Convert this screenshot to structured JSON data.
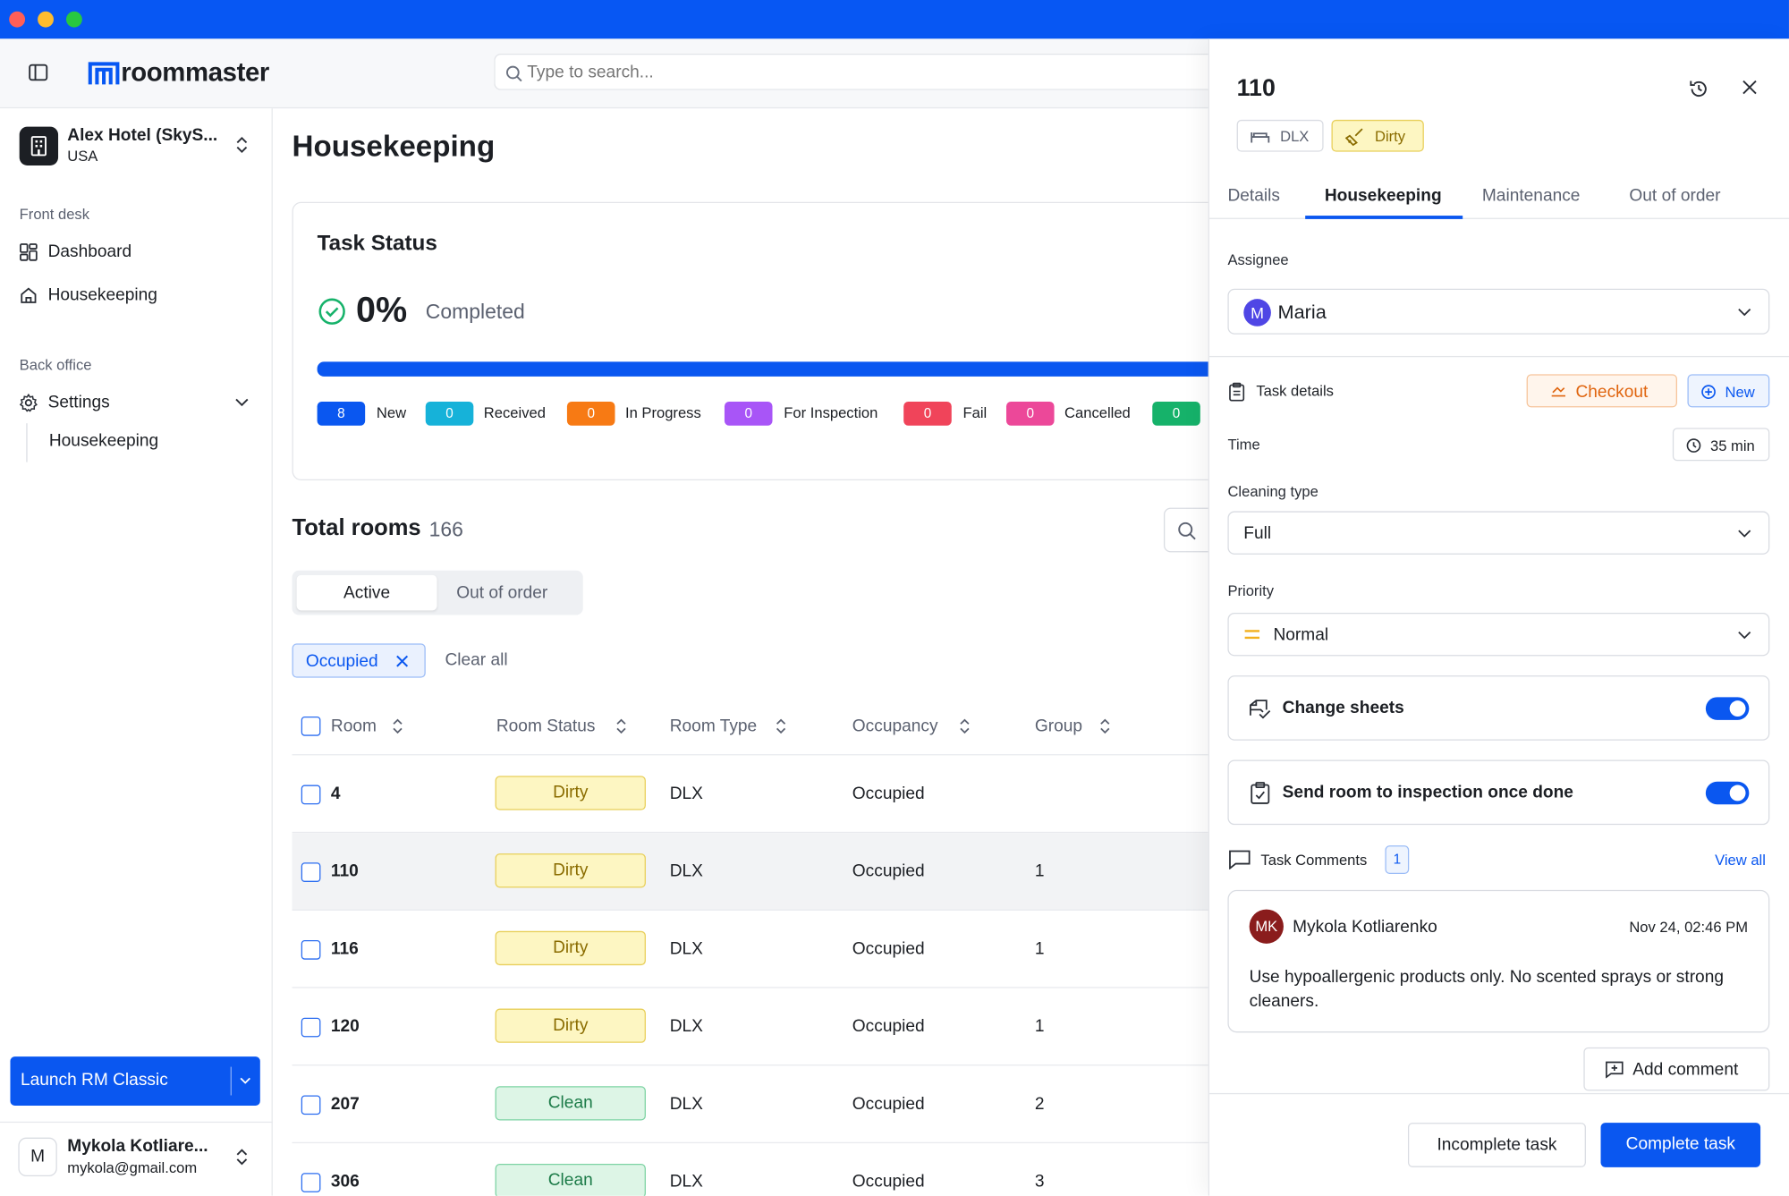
{
  "brand": {
    "name": "roommaster",
    "color": "#0757f3"
  },
  "search": {
    "placeholder": "Type to search..."
  },
  "hotel": {
    "name": "Alex Hotel (SkyS...",
    "country": "USA"
  },
  "sidebar": {
    "section_front": "Front desk",
    "dashboard": "Dashboard",
    "housekeeping": "Housekeeping",
    "section_back": "Back office",
    "settings": "Settings",
    "settings_housekeeping": "Housekeeping",
    "launch": "Launch RM Classic"
  },
  "user": {
    "initial": "M",
    "name": "Mykola Kotliare...",
    "email": "mykola@gmail.com"
  },
  "page": {
    "title": "Housekeeping"
  },
  "task_status": {
    "title": "Task Status",
    "percent": "0%",
    "completed_label": "Completed",
    "progress": 0,
    "chips": [
      {
        "count": "8",
        "label": "New",
        "color": "#0a57f0"
      },
      {
        "count": "0",
        "label": "Received",
        "color": "#16b2d9"
      },
      {
        "count": "0",
        "label": "In Progress",
        "color": "#f77a14"
      },
      {
        "count": "0",
        "label": "For Inspection",
        "color": "#a855f7"
      },
      {
        "count": "0",
        "label": "Fail",
        "color": "#f0445a"
      },
      {
        "count": "0",
        "label": "Cancelled",
        "color": "#ec4899"
      },
      {
        "count": "0",
        "label": "",
        "color": "#16b26a"
      }
    ]
  },
  "rooms": {
    "title": "Total rooms",
    "count": "166",
    "tabs": {
      "active": "Active",
      "out_of_order": "Out of order"
    },
    "filter": "Occupied",
    "clear_all": "Clear all",
    "columns": [
      "Room",
      "Room Status",
      "Room Type",
      "Occupancy",
      "Group"
    ],
    "rows": [
      {
        "room": "4",
        "status": "Dirty",
        "type": "DLX",
        "occupancy": "Occupied",
        "group": ""
      },
      {
        "room": "110",
        "status": "Dirty",
        "type": "DLX",
        "occupancy": "Occupied",
        "group": "1"
      },
      {
        "room": "116",
        "status": "Dirty",
        "type": "DLX",
        "occupancy": "Occupied",
        "group": "1"
      },
      {
        "room": "120",
        "status": "Dirty",
        "type": "DLX",
        "occupancy": "Occupied",
        "group": "1"
      },
      {
        "room": "207",
        "status": "Clean",
        "type": "DLX",
        "occupancy": "Occupied",
        "group": "2"
      },
      {
        "room": "306",
        "status": "Clean",
        "type": "DLX",
        "occupancy": "Occupied",
        "group": "3"
      }
    ]
  },
  "panel": {
    "room": "110",
    "room_type": "DLX",
    "status": "Dirty",
    "tabs": [
      "Details",
      "Housekeeping",
      "Maintenance",
      "Out of order"
    ],
    "assignee_label": "Assignee",
    "assignee_initial": "M",
    "assignee": "Maria",
    "task_details": "Task details",
    "checkout": "Checkout",
    "new": "New",
    "time_label": "Time",
    "time": "35 min",
    "cleaning_label": "Cleaning type",
    "cleaning": "Full",
    "priority_label": "Priority",
    "priority": "Normal",
    "change_sheets": "Change sheets",
    "change_sheets_on": true,
    "send_inspection": "Send room to inspection once done",
    "send_inspection_on": true,
    "comments_label": "Task Comments",
    "comments_count": "1",
    "view_all": "View all",
    "comment": {
      "initials": "MK",
      "author": "Mykola Kotliarenko",
      "date": "Nov 24, 02:46 PM",
      "text": "Use hypoallergenic products only. No scented sprays or strong cleaners."
    },
    "add_comment": "Add comment",
    "incomplete": "Incomplete task",
    "complete": "Complete task"
  }
}
